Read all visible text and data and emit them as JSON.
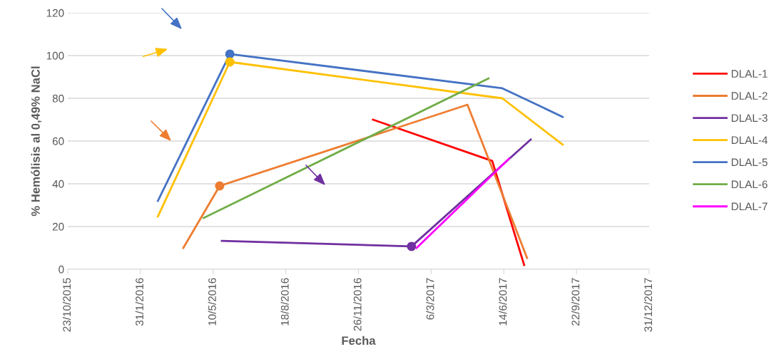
{
  "chart_data": {
    "type": "line",
    "xlabel": "Fecha",
    "ylabel": "% Hemólisis al 0,49% NaCl",
    "xlim": [
      "2015-10-23",
      "2017-12-31"
    ],
    "xticks": [
      {
        "value": "2015-10-23",
        "label": "23/10/2015"
      },
      {
        "value": "2016-01-31",
        "label": "31/1/2016"
      },
      {
        "value": "2016-05-10",
        "label": "10/5/2016"
      },
      {
        "value": "2016-08-18",
        "label": "18/8/2016"
      },
      {
        "value": "2016-11-26",
        "label": "26/11/2016"
      },
      {
        "value": "2017-03-06",
        "label": "6/3/2017"
      },
      {
        "value": "2017-06-14",
        "label": "14/6/2017"
      },
      {
        "value": "2017-09-22",
        "label": "22/9/2017"
      },
      {
        "value": "2017-12-31",
        "label": "31/12/2017"
      }
    ],
    "ylim": [
      0,
      120
    ],
    "yticks": [
      0,
      20,
      40,
      60,
      80,
      100,
      120
    ],
    "grid": "y",
    "legend": "right",
    "marker": "none",
    "series": [
      {
        "name": "DLAL-1",
        "color": "#ff0000",
        "x": [
          "2016-12-16",
          "2017-05-29",
          "2017-07-12"
        ],
        "values": [
          70,
          50.7,
          2
        ]
      },
      {
        "name": "DLAL-2",
        "color": "#ed7d31",
        "x": [
          "2016-03-30",
          "2016-05-19",
          "2017-04-25",
          "2017-07-16"
        ],
        "values": [
          10,
          39,
          77,
          5.3
        ]
      },
      {
        "name": "DLAL-3",
        "color": "#7030a0",
        "x": [
          "2016-05-22",
          "2017-02-07",
          "2017-07-21"
        ],
        "values": [
          13.3,
          10.7,
          60.7
        ]
      },
      {
        "name": "DLAL-4",
        "color": "#ffc000",
        "x": [
          "2016-02-24",
          "2016-06-02",
          "2017-06-12",
          "2017-09-03"
        ],
        "values": [
          24.7,
          97,
          80,
          58.3
        ]
      },
      {
        "name": "DLAL-5",
        "color": "#4472c4",
        "x": [
          "2016-02-24",
          "2016-06-02",
          "2017-06-12",
          "2017-09-03"
        ],
        "values": [
          32,
          100.7,
          84.7,
          71.3
        ]
      },
      {
        "name": "DLAL-6",
        "color": "#70ad47",
        "x": [
          "2016-04-27",
          "2017-05-24"
        ],
        "values": [
          24,
          89.3
        ]
      },
      {
        "name": "DLAL-7",
        "color": "#ff00ff",
        "x": [
          "2017-02-14",
          "2017-06-21"
        ],
        "values": [
          10,
          51.7
        ]
      },
      {
        "type": "scatter",
        "marker": "circle",
        "color": "#4472c4",
        "x": [
          "2016-06-02"
        ],
        "values": [
          100.7
        ]
      },
      {
        "type": "scatter",
        "marker": "circle",
        "color": "#ffc000",
        "x": [
          "2016-06-02"
        ],
        "values": [
          97
        ]
      },
      {
        "type": "scatter",
        "marker": "circle",
        "color": "#ed7d31",
        "x": [
          "2016-05-19"
        ],
        "values": [
          39
        ]
      },
      {
        "type": "scatter",
        "marker": "circle",
        "color": "#7030a0",
        "x": [
          "2017-02-07"
        ],
        "values": [
          10.7
        ]
      }
    ]
  }
}
